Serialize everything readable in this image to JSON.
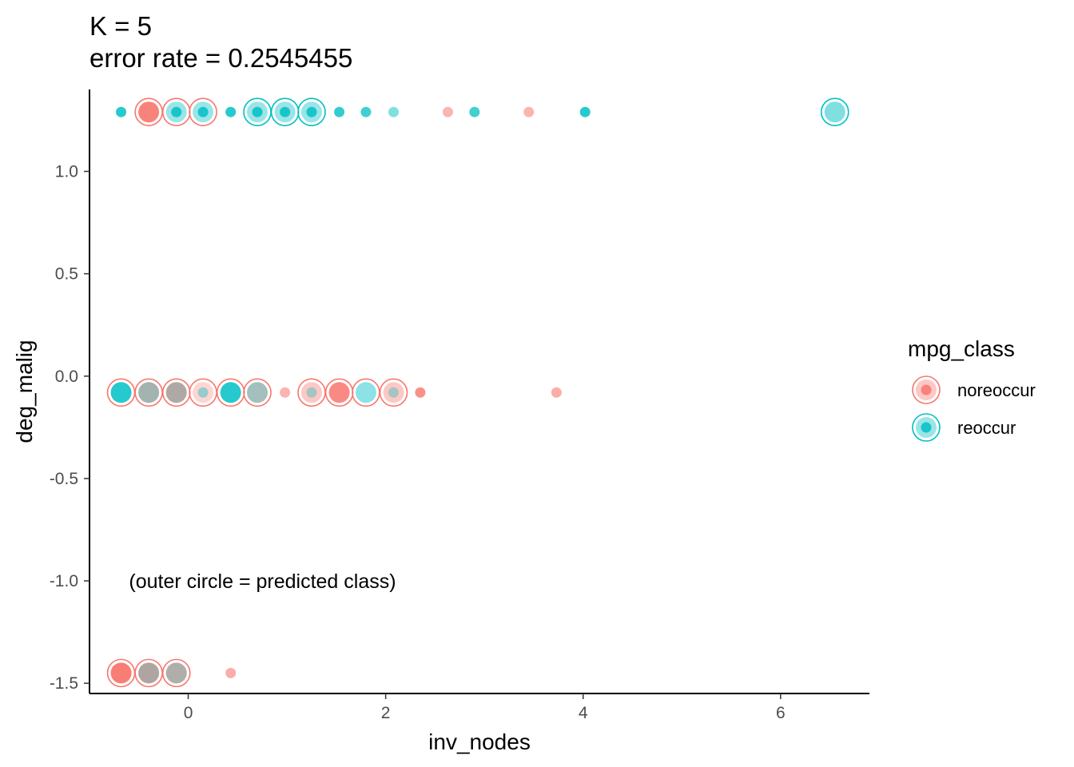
{
  "chart_data": {
    "type": "scatter",
    "title": "K = 5",
    "subtitle": "error rate = 0.2545455",
    "xlabel": "inv_nodes",
    "ylabel": "deg_malig",
    "xlim": [
      -1.0,
      6.9
    ],
    "ylim": [
      -1.55,
      1.4
    ],
    "x_ticks": [
      0,
      2,
      4,
      6
    ],
    "x_tick_labels": [
      "0",
      "2",
      "4",
      "6"
    ],
    "y_ticks": [
      -1.5,
      -1.0,
      -0.5,
      0.0,
      0.5,
      1.0
    ],
    "y_tick_labels": [
      "-1.5",
      "-1.0",
      "-0.5",
      "0.0",
      "0.5",
      "1.0"
    ],
    "grid": false,
    "annotation": {
      "text": "(outer circle = predicted class)",
      "x": -0.6,
      "y": -1.0
    },
    "legend": {
      "title": "mpg_class",
      "position": "right",
      "items": [
        {
          "label": "noreoccur",
          "color": "#F8766D"
        },
        {
          "label": "reoccur",
          "color": "#00BFC4"
        }
      ]
    },
    "colors": {
      "noreoccur": "#F8766D",
      "reoccur": "#00BFC4"
    },
    "predicted_rings": [
      {
        "x": -0.4,
        "y": 1.29,
        "cls": "noreoccur"
      },
      {
        "x": -0.12,
        "y": 1.29,
        "cls": "noreoccur"
      },
      {
        "x": 0.15,
        "y": 1.29,
        "cls": "noreoccur"
      },
      {
        "x": 0.7,
        "y": 1.29,
        "cls": "reoccur"
      },
      {
        "x": 0.98,
        "y": 1.29,
        "cls": "reoccur"
      },
      {
        "x": 1.25,
        "y": 1.29,
        "cls": "reoccur"
      },
      {
        "x": 6.55,
        "y": 1.29,
        "cls": "reoccur"
      },
      {
        "x": -0.68,
        "y": -0.08,
        "cls": "noreoccur"
      },
      {
        "x": -0.4,
        "y": -0.08,
        "cls": "noreoccur"
      },
      {
        "x": -0.12,
        "y": -0.08,
        "cls": "noreoccur"
      },
      {
        "x": 0.15,
        "y": -0.08,
        "cls": "noreoccur"
      },
      {
        "x": 0.43,
        "y": -0.08,
        "cls": "noreoccur"
      },
      {
        "x": 0.7,
        "y": -0.08,
        "cls": "noreoccur"
      },
      {
        "x": 1.25,
        "y": -0.08,
        "cls": "noreoccur"
      },
      {
        "x": 1.53,
        "y": -0.08,
        "cls": "noreoccur"
      },
      {
        "x": 1.8,
        "y": -0.08,
        "cls": "noreoccur"
      },
      {
        "x": 2.08,
        "y": -0.08,
        "cls": "noreoccur"
      },
      {
        "x": -0.68,
        "y": -1.45,
        "cls": "noreoccur"
      },
      {
        "x": -0.4,
        "y": -1.45,
        "cls": "noreoccur"
      },
      {
        "x": -0.12,
        "y": -1.45,
        "cls": "noreoccur"
      }
    ],
    "points": [
      {
        "x": -0.68,
        "y": 1.29,
        "cls": "reoccur",
        "size": "small",
        "alpha": 0.85
      },
      {
        "x": -0.4,
        "y": 1.29,
        "cls": "noreoccur",
        "size": "large",
        "alpha": 0.9
      },
      {
        "x": -0.12,
        "y": 1.29,
        "cls": "reoccur",
        "size": "large",
        "alpha": 0.4
      },
      {
        "x": -0.12,
        "y": 1.29,
        "cls": "reoccur",
        "size": "small",
        "alpha": 0.85
      },
      {
        "x": 0.15,
        "y": 1.29,
        "cls": "reoccur",
        "size": "large",
        "alpha": 0.4
      },
      {
        "x": 0.15,
        "y": 1.29,
        "cls": "reoccur",
        "size": "small",
        "alpha": 0.85
      },
      {
        "x": 0.43,
        "y": 1.29,
        "cls": "reoccur",
        "size": "small",
        "alpha": 0.85
      },
      {
        "x": 0.7,
        "y": 1.29,
        "cls": "reoccur",
        "size": "large",
        "alpha": 0.4
      },
      {
        "x": 0.7,
        "y": 1.29,
        "cls": "reoccur",
        "size": "small",
        "alpha": 0.85
      },
      {
        "x": 0.98,
        "y": 1.29,
        "cls": "reoccur",
        "size": "large",
        "alpha": 0.4
      },
      {
        "x": 0.98,
        "y": 1.29,
        "cls": "reoccur",
        "size": "small",
        "alpha": 0.85
      },
      {
        "x": 1.25,
        "y": 1.29,
        "cls": "reoccur",
        "size": "large",
        "alpha": 0.4
      },
      {
        "x": 1.25,
        "y": 1.29,
        "cls": "reoccur",
        "size": "small",
        "alpha": 0.85
      },
      {
        "x": 1.53,
        "y": 1.29,
        "cls": "reoccur",
        "size": "small",
        "alpha": 0.8
      },
      {
        "x": 1.8,
        "y": 1.29,
        "cls": "reoccur",
        "size": "small",
        "alpha": 0.75
      },
      {
        "x": 2.08,
        "y": 1.29,
        "cls": "reoccur",
        "size": "small",
        "alpha": 0.5
      },
      {
        "x": 2.63,
        "y": 1.29,
        "cls": "noreoccur",
        "size": "small",
        "alpha": 0.55
      },
      {
        "x": 2.9,
        "y": 1.29,
        "cls": "reoccur",
        "size": "small",
        "alpha": 0.75
      },
      {
        "x": 3.45,
        "y": 1.29,
        "cls": "noreoccur",
        "size": "small",
        "alpha": 0.55
      },
      {
        "x": 4.02,
        "y": 1.29,
        "cls": "reoccur",
        "size": "small",
        "alpha": 0.85
      },
      {
        "x": 6.55,
        "y": 1.29,
        "cls": "reoccur",
        "size": "large",
        "alpha": 0.5
      },
      {
        "x": -0.68,
        "y": -0.08,
        "cls": "reoccur",
        "size": "large",
        "alpha": 0.85
      },
      {
        "x": -0.4,
        "y": -0.08,
        "cls": "noreoccur",
        "size": "large",
        "alpha": 0.6
      },
      {
        "x": -0.4,
        "y": -0.08,
        "cls": "reoccur",
        "size": "large",
        "alpha": 0.35
      },
      {
        "x": -0.12,
        "y": -0.08,
        "cls": "noreoccur",
        "size": "large",
        "alpha": 0.7
      },
      {
        "x": -0.12,
        "y": -0.08,
        "cls": "reoccur",
        "size": "large",
        "alpha": 0.3
      },
      {
        "x": 0.15,
        "y": -0.08,
        "cls": "noreoccur",
        "size": "large",
        "alpha": 0.3
      },
      {
        "x": 0.15,
        "y": -0.08,
        "cls": "reoccur",
        "size": "small",
        "alpha": 0.4
      },
      {
        "x": 0.43,
        "y": -0.08,
        "cls": "reoccur",
        "size": "large",
        "alpha": 0.85
      },
      {
        "x": 0.7,
        "y": -0.08,
        "cls": "reoccur",
        "size": "large",
        "alpha": 0.5
      },
      {
        "x": 0.7,
        "y": -0.08,
        "cls": "noreoccur",
        "size": "large",
        "alpha": 0.3
      },
      {
        "x": 0.98,
        "y": -0.08,
        "cls": "noreoccur",
        "size": "small",
        "alpha": 0.55
      },
      {
        "x": 1.25,
        "y": -0.08,
        "cls": "noreoccur",
        "size": "large",
        "alpha": 0.4
      },
      {
        "x": 1.25,
        "y": -0.08,
        "cls": "reoccur",
        "size": "small",
        "alpha": 0.35
      },
      {
        "x": 1.53,
        "y": -0.08,
        "cls": "noreoccur",
        "size": "large",
        "alpha": 0.85
      },
      {
        "x": 1.8,
        "y": -0.08,
        "cls": "reoccur",
        "size": "large",
        "alpha": 0.45
      },
      {
        "x": 2.08,
        "y": -0.08,
        "cls": "noreoccur",
        "size": "large",
        "alpha": 0.4
      },
      {
        "x": 2.08,
        "y": -0.08,
        "cls": "reoccur",
        "size": "small",
        "alpha": 0.35
      },
      {
        "x": 2.35,
        "y": -0.08,
        "cls": "noreoccur",
        "size": "small",
        "alpha": 0.8
      },
      {
        "x": 3.73,
        "y": -0.08,
        "cls": "noreoccur",
        "size": "small",
        "alpha": 0.6
      },
      {
        "x": -0.68,
        "y": -1.45,
        "cls": "noreoccur",
        "size": "large",
        "alpha": 0.95
      },
      {
        "x": -0.4,
        "y": -1.45,
        "cls": "noreoccur",
        "size": "large",
        "alpha": 0.75
      },
      {
        "x": -0.4,
        "y": -1.45,
        "cls": "reoccur",
        "size": "large",
        "alpha": 0.3
      },
      {
        "x": -0.12,
        "y": -1.45,
        "cls": "reoccur",
        "size": "large",
        "alpha": 0.55
      },
      {
        "x": -0.12,
        "y": -1.45,
        "cls": "noreoccur",
        "size": "large",
        "alpha": 0.45
      },
      {
        "x": 0.43,
        "y": -1.45,
        "cls": "noreoccur",
        "size": "small",
        "alpha": 0.6
      }
    ]
  }
}
